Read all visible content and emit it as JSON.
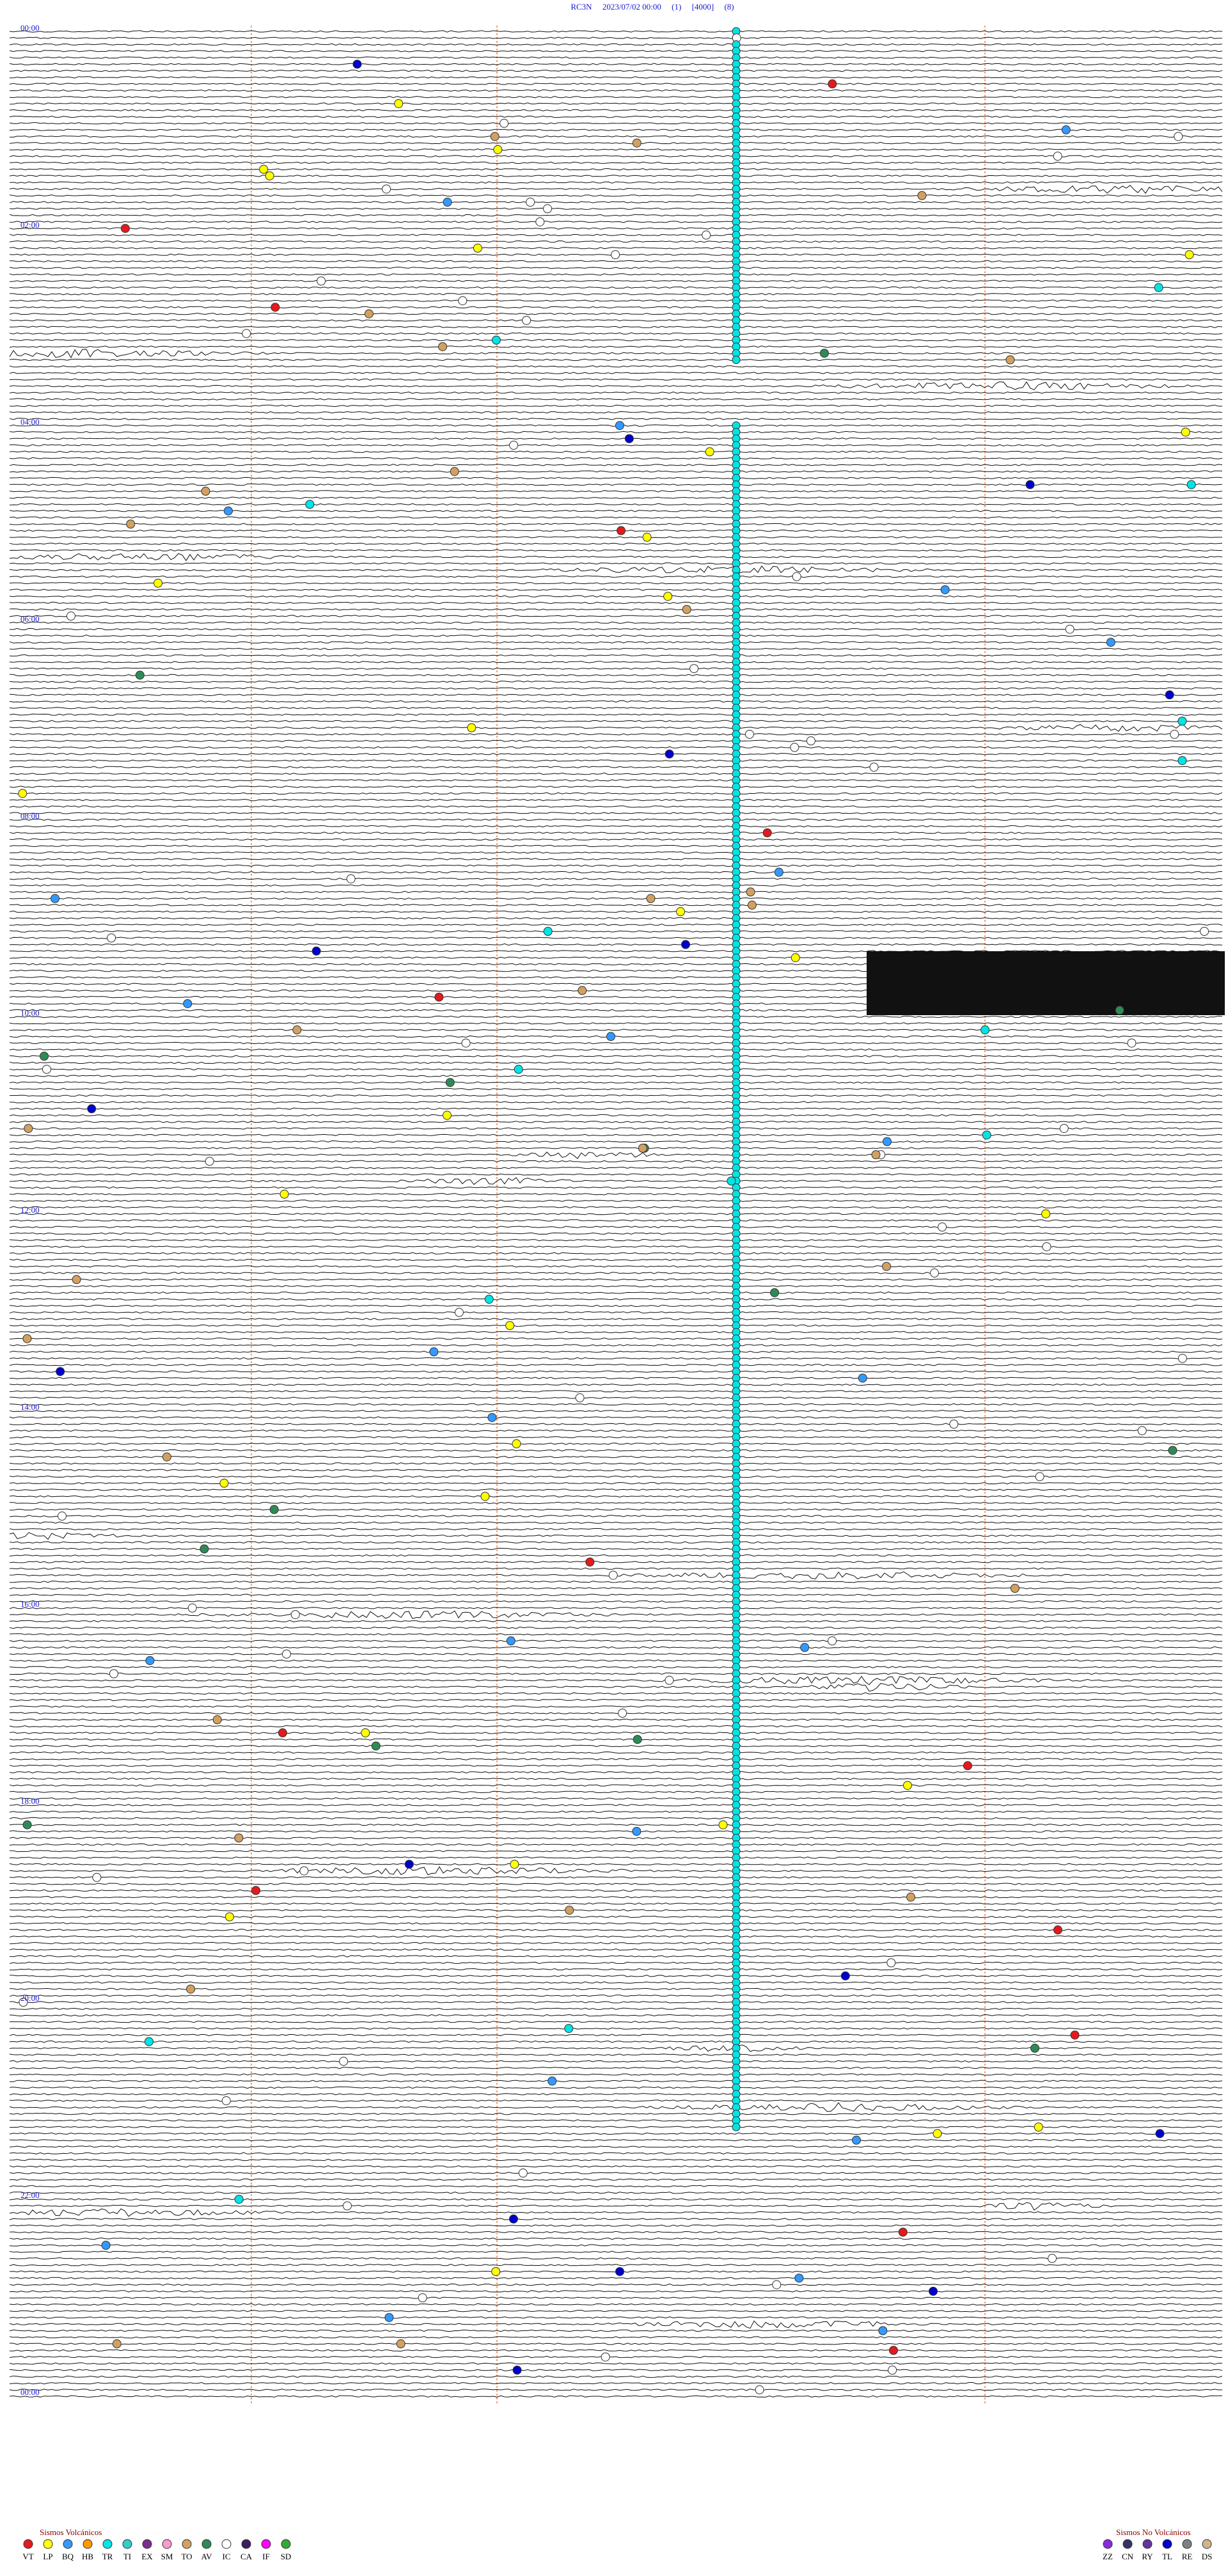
{
  "header": {
    "title": "RC3N     2023/07/02 00:00     (1)     [4000]     (8)"
  },
  "time_labels": [
    "00:00",
    "02:00",
    "04:00",
    "06:00",
    "08:00",
    "10:00",
    "12:00",
    "14:00",
    "16:00",
    "18:00",
    "20:00",
    "22:00",
    "00:00"
  ],
  "legend": {
    "volcanic": {
      "title": "Sismos Volcánicos",
      "items": [
        {
          "code": "VT",
          "color": "#e41a1c"
        },
        {
          "code": "LP",
          "color": "#ffff00"
        },
        {
          "code": "BQ",
          "color": "#3399ff"
        },
        {
          "code": "HB",
          "color": "#ff9900"
        },
        {
          "code": "TR",
          "color": "#00e5e5"
        },
        {
          "code": "TI",
          "color": "#33cccc"
        },
        {
          "code": "EX",
          "color": "#7b2d8e"
        },
        {
          "code": "SM",
          "color": "#ff99cc"
        },
        {
          "code": "TO",
          "color": "#d2a060"
        },
        {
          "code": "AV",
          "color": "#2e8b57"
        },
        {
          "code": "IC",
          "color": "#ffffff"
        },
        {
          "code": "CA",
          "color": "#3b1f5e"
        },
        {
          "code": "IF",
          "color": "#ff00ff"
        },
        {
          "code": "SD",
          "color": "#33aa33"
        }
      ]
    },
    "non_volcanic": {
      "title": "Sismos No Volcánicos",
      "items": [
        {
          "code": "ZZ",
          "color": "#8a2be2"
        },
        {
          "code": "CN",
          "color": "#333366"
        },
        {
          "code": "RY",
          "color": "#663399"
        },
        {
          "code": "TL",
          "color": "#0000cc"
        },
        {
          "code": "RE",
          "color": "#808080"
        },
        {
          "code": "DS",
          "color": "#d2b48c"
        }
      ]
    }
  }
}
